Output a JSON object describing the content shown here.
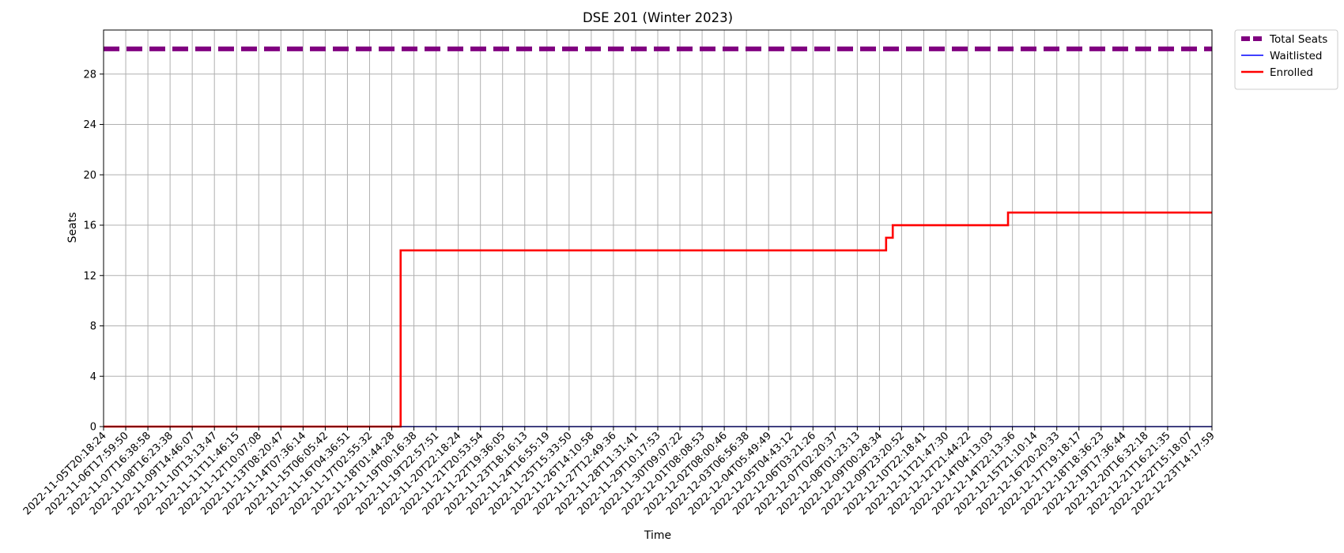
{
  "chart_data": {
    "type": "line",
    "title": "DSE 201 (Winter 2023)",
    "xlabel": "Time",
    "ylabel": "Seats",
    "ylim": [
      0,
      31.5
    ],
    "yticks": [
      0,
      4,
      8,
      12,
      16,
      20,
      24,
      28
    ],
    "grid": true,
    "legend_position": "outside-top-right",
    "x_tick_labels": [
      "2022-11-05T20:18:24",
      "2022-11-06T17:59:50",
      "2022-11-07T16:38:58",
      "2022-11-08T16:23:38",
      "2022-11-09T14:46:07",
      "2022-11-10T13:13:47",
      "2022-11-11T11:46:15",
      "2022-11-12T10:07:08",
      "2022-11-13T08:20:47",
      "2022-11-14T07:36:14",
      "2022-11-15T06:05:42",
      "2022-11-16T04:36:51",
      "2022-11-17T02:55:32",
      "2022-11-18T01:44:28",
      "2022-11-19T00:16:38",
      "2022-11-19T22:57:51",
      "2022-11-20T22:18:24",
      "2022-11-21T20:53:54",
      "2022-11-22T19:36:05",
      "2022-11-23T18:16:13",
      "2022-11-24T16:55:19",
      "2022-11-25T15:33:50",
      "2022-11-26T14:10:58",
      "2022-11-27T12:49:36",
      "2022-11-28T11:31:41",
      "2022-11-29T10:17:53",
      "2022-11-30T09:07:22",
      "2022-12-01T08:08:53",
      "2022-12-02T08:00:46",
      "2022-12-03T06:56:38",
      "2022-12-04T05:49:49",
      "2022-12-05T04:43:12",
      "2022-12-06T03:21:26",
      "2022-12-07T02:20:37",
      "2022-12-08T01:23:13",
      "2022-12-09T00:28:34",
      "2022-12-09T23:20:52",
      "2022-12-10T22:18:41",
      "2022-12-11T21:47:30",
      "2022-12-12T21:44:22",
      "2022-12-14T04:13:03",
      "2022-12-14T22:13:36",
      "2022-12-15T21:10:14",
      "2022-12-16T20:20:33",
      "2022-12-17T19:18:17",
      "2022-12-18T18:36:23",
      "2022-12-19T17:36:44",
      "2022-12-20T16:32:18",
      "2022-12-21T16:21:35",
      "2022-12-22T15:18:07",
      "2022-12-23T14:17:59"
    ],
    "series": [
      {
        "name": "Total Seats",
        "color": "#800080",
        "style": "dashed",
        "points": [
          [
            0,
            30
          ],
          [
            50,
            30
          ]
        ]
      },
      {
        "name": "Waitlisted",
        "color": "#0000ff",
        "style": "solid",
        "points": [
          [
            0,
            0
          ],
          [
            50,
            0
          ]
        ]
      },
      {
        "name": "Enrolled",
        "color": "#ff0000",
        "style": "step",
        "points": [
          [
            0,
            0
          ],
          [
            13.4,
            0
          ],
          [
            13.4,
            14
          ],
          [
            35.3,
            14
          ],
          [
            35.3,
            15
          ],
          [
            35.6,
            15
          ],
          [
            35.6,
            16
          ],
          [
            40.8,
            16
          ],
          [
            40.8,
            17
          ],
          [
            50,
            17
          ]
        ]
      }
    ]
  }
}
